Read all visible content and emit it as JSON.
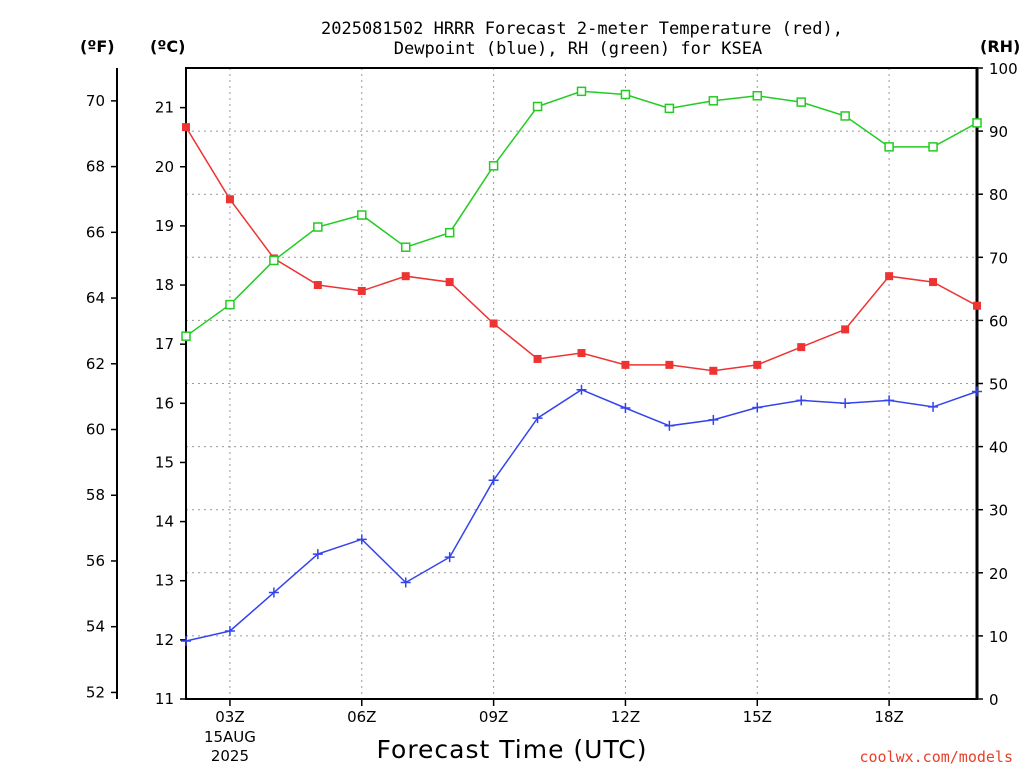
{
  "chart_data": {
    "type": "line",
    "title_lines": [
      "2025081502 HRRR Forecast 2-meter Temperature (red),",
      "Dewpoint (blue), RH (green) for KSEA"
    ],
    "xlabel": "Forecast Time (UTC)",
    "credit": "coolwx.com/models",
    "units": {
      "left_f": "(ºF)",
      "left_c": "(ºC)",
      "right": "(RH)"
    },
    "x_hours": [
      2,
      3,
      4,
      5,
      6,
      7,
      8,
      9,
      10,
      11,
      12,
      13,
      14,
      15,
      16,
      17,
      18,
      19,
      20
    ],
    "x_ticks": [
      {
        "hour": 3,
        "label": "03Z",
        "sub": [
          "15AUG",
          "2025"
        ]
      },
      {
        "hour": 6,
        "label": "06Z"
      },
      {
        "hour": 9,
        "label": "09Z"
      },
      {
        "hour": 12,
        "label": "12Z"
      },
      {
        "hour": 15,
        "label": "15Z"
      },
      {
        "hour": 18,
        "label": "18Z"
      }
    ],
    "xlim": [
      2,
      20
    ],
    "ylim_c": [
      11,
      21.67
    ],
    "ylim_f": [
      51.8,
      71.0
    ],
    "ylim_rh": [
      0,
      100
    ],
    "c_ticks": [
      11,
      12,
      13,
      14,
      15,
      16,
      17,
      18,
      19,
      20,
      21
    ],
    "f_ticks": [
      52,
      54,
      56,
      58,
      60,
      62,
      64,
      66,
      68,
      70
    ],
    "rh_ticks": [
      0,
      10,
      20,
      30,
      40,
      50,
      60,
      70,
      80,
      90,
      100
    ],
    "grid": true,
    "series": [
      {
        "name": "Temperature (red)",
        "axis": "c",
        "color": "#ee3333",
        "marker": "filled-square",
        "values": [
          20.67,
          19.45,
          18.45,
          18.0,
          17.9,
          18.15,
          18.05,
          17.35,
          16.75,
          16.85,
          16.65,
          16.65,
          16.55,
          16.65,
          16.95,
          17.25,
          18.15,
          18.05,
          17.65
        ]
      },
      {
        "name": "Dewpoint (blue)",
        "axis": "c",
        "color": "#3344ee",
        "marker": "plus",
        "values": [
          11.98,
          12.15,
          12.8,
          13.45,
          13.7,
          12.97,
          13.4,
          14.7,
          15.75,
          16.23,
          15.92,
          15.62,
          15.72,
          15.93,
          16.05,
          16.0,
          16.05,
          15.94,
          16.2
        ]
      },
      {
        "name": "RH (green)",
        "axis": "rh",
        "color": "#22cc22",
        "marker": "open-square",
        "values": [
          57.5,
          62.5,
          69.5,
          74.8,
          76.7,
          71.6,
          73.9,
          84.5,
          93.9,
          96.3,
          95.8,
          93.6,
          94.8,
          95.6,
          94.6,
          92.4,
          87.5,
          87.5,
          91.3
        ]
      }
    ]
  }
}
